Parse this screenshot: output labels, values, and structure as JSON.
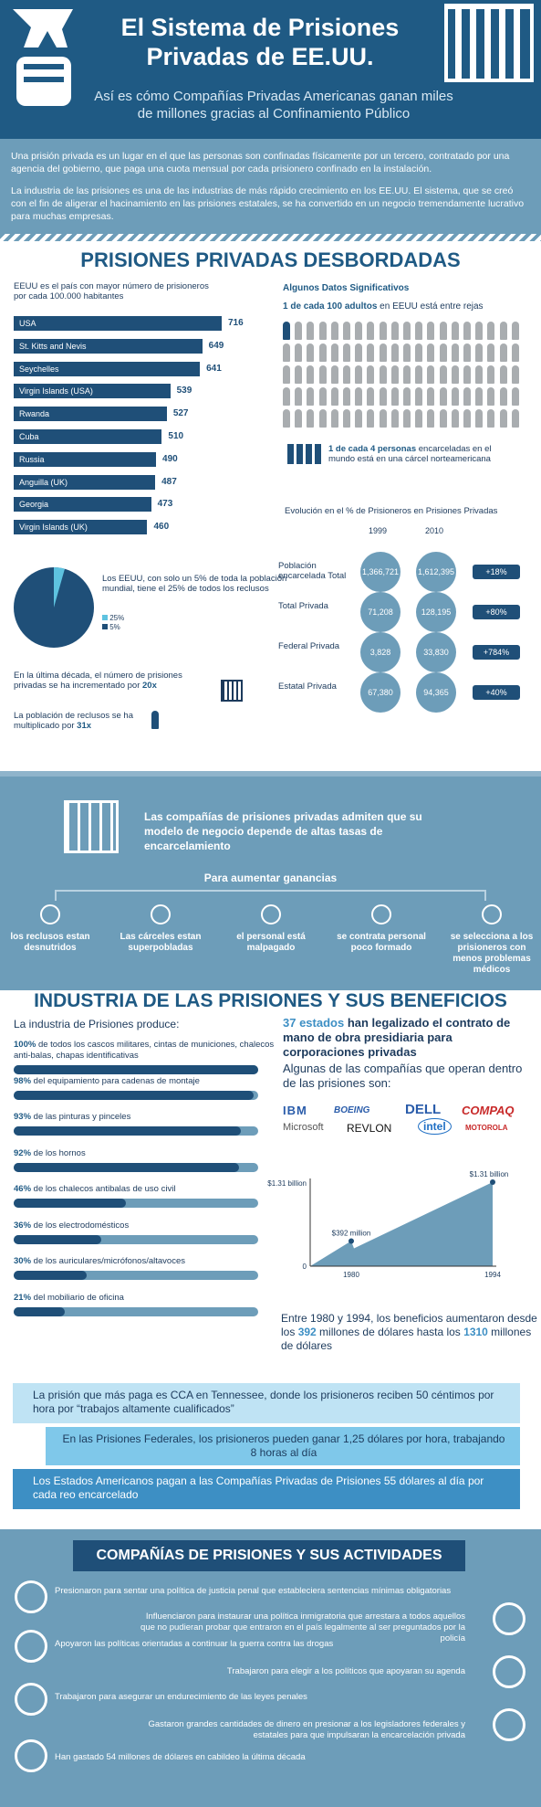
{
  "header": {
    "title": "El Sistema de Prisiones Privadas de EE.UU.",
    "subtitle": "Así es cómo Compañías Privadas Americanas ganan miles de millones gracias al Confinamiento Público"
  },
  "intro": {
    "p1": "Una prisión privada es un lugar en el que las personas son confinadas físicamente por un tercero, contratado por una agencia del gobierno, que paga una cuota mensual por cada prisionero confinado en la instalación.",
    "p2": "La industria de las prisiones es una de las industrias de más rápido crecimiento en los EE.UU. El sistema, que se creó con el fin de aligerar el hacinamiento en las prisiones estatales, se ha convertido en un negocio tremendamente lucrativo para muchas empresas."
  },
  "section1": {
    "title": "PRISIONES PRIVADAS DESBORDADAS",
    "bar_caption": "EEUU es el país con mayor número de prisioneros por cada 100.000 habitantes",
    "countries": [
      {
        "name": "USA",
        "value": "716"
      },
      {
        "name": "St. Kitts and Nevis",
        "value": "649"
      },
      {
        "name": "Seychelles",
        "value": "641"
      },
      {
        "name": "Virgin Islands (USA)",
        "value": "539"
      },
      {
        "name": "Rwanda",
        "value": "527"
      },
      {
        "name": "Cuba",
        "value": "510"
      },
      {
        "name": "Russia",
        "value": "490"
      },
      {
        "name": "Anguilla (UK)",
        "value": "487"
      },
      {
        "name": "Georgia",
        "value": "473"
      },
      {
        "name": "Virgin Islands (UK)",
        "value": "460"
      }
    ],
    "facts_title": "Algunos Datos Significativos",
    "fact1_bold": "1 de cada 100 adultos",
    "fact1_rest": " en EEUU está entre rejas",
    "fact2_bold": "1 de cada 4 personas",
    "fact2_rest": " encarceladas en el mundo está en una cárcel norteamericana",
    "pie_text": "Los EEUU, con solo un 5% de toda la población mundial, tiene el 25% de todos los reclusos",
    "pie_legend": [
      "25%",
      "5%"
    ],
    "decade_text": "En la última década, el número de prisiones privadas se ha incrementado por ",
    "decade_val": "20x",
    "pop_text": "La población de reclusos se ha multiplicado por ",
    "pop_val": "31x",
    "evo_title": "Evolución en el % de Prisioneros en Prisiones Privadas",
    "year1": "1999",
    "year2": "2010",
    "evo_rows": [
      {
        "label": "Población encarcelada Total",
        "v1": "1,366,721",
        "v2": "1,612,395",
        "pct": "+18%"
      },
      {
        "label": "Total Privada",
        "v1": "71,208",
        "v2": "128,195",
        "pct": "+80%"
      },
      {
        "label": "Federal Privada",
        "v1": "3,828",
        "v2": "33,830",
        "pct": "+784%"
      },
      {
        "label": "Estatal Privada",
        "v1": "67,380",
        "v2": "94,365",
        "pct": "+40%"
      }
    ]
  },
  "band": {
    "headline": "Las compañías de prisiones privadas admiten que su modelo de negocio depende de altas tasas de encarcelamiento",
    "subhead": "Para aumentar ganancias",
    "items": [
      {
        "text": "los reclusos estan desnutridos",
        "icon": "food-icon"
      },
      {
        "text": "Las cárceles estan superpobladas",
        "icon": "crowd-icon"
      },
      {
        "text": "el personal está malpagado",
        "icon": "money-icon"
      },
      {
        "text": "se contrata personal poco formado",
        "icon": "worker-icon"
      },
      {
        "text": "se selecciona a los prisioneros con menos problemas médicos",
        "icon": "medical-icon"
      }
    ]
  },
  "section2": {
    "title": "INDUSTRIA DE LAS PRISIONES Y SUS BENEFICIOS",
    "produces": "La industria de Prisiones produce:",
    "products": [
      {
        "pct": "100%",
        "text": " de todos los cascos militares, cintas de municiones, chalecos anti-balas, chapas identificativas",
        "value": 1.0
      },
      {
        "pct": "98%",
        "text": " del equipamiento para cadenas de montaje",
        "value": 0.98
      },
      {
        "pct": "93%",
        "text": " de las pinturas y pinceles",
        "value": 0.93
      },
      {
        "pct": "92%",
        "text": " de los hornos",
        "value": 0.92
      },
      {
        "pct": "46%",
        "text": " de los chalecos antibalas de uso civil",
        "value": 0.46
      },
      {
        "pct": "36%",
        "text": " de los electrodomésticos",
        "value": 0.36
      },
      {
        "pct": "30%",
        "text": " de los auriculares/micrófonos/altavoces",
        "value": 0.3
      },
      {
        "pct": "21%",
        "text": " del mobiliario de oficina",
        "value": 0.21
      }
    ],
    "states_bold": "37 estados",
    "states_rest": " han legalizado el contrato de mano de obra presidiaria para corporaciones privadas",
    "companies_title": "Algunas de las compañías que operan dentro de las prisiones son:",
    "companies": [
      "IBM",
      "BOEING",
      "DELL",
      "COMPAQ",
      "Microsoft",
      "REVLON",
      "intel",
      "MOTOROLA"
    ],
    "chart_data": {
      "type": "area",
      "x": [
        "1980",
        "1994"
      ],
      "values": [
        392,
        1310
      ],
      "labels": [
        "$392 million",
        "$1.31 billion"
      ],
      "ylabel_top": "$1.31 billion",
      "ylabel_zero": "0"
    },
    "profit_a": "Entre 1980 y 1994, los beneficios aumentaron desde los ",
    "profit_b": "392",
    "profit_c": " millones de dólares hasta los ",
    "profit_d": "1310",
    "profit_e": " millones de dólares",
    "quotes": [
      "La prisión que más paga es CCA en Tennessee, donde los prisioneros reciben 50 céntimos por hora por “trabajos altamente cualificados”",
      "En las Prisiones Federales, los prisioneros pueden ganar 1,25 dólares por hora, trabajando 8 horas al día",
      "Los Estados Americanos pagan a las Compañías Privadas de Prisiones 55 dólares al día por cada reo encarcelado"
    ]
  },
  "section3": {
    "title": "COMPAÑÍAS DE PRISIONES Y SUS ACTIVIDADES",
    "activities": [
      "Presionaron para sentar una política de justicia penal que estableciera sentencias mínimas obligatorias",
      "Influenciaron para instaurar una política inmigratoria que arrestara a todos aquellos que no pudieran probar que entraron en el país legalmente al ser preguntados por la policía",
      "Apoyaron las políticas orientadas a continuar la guerra contra las drogas",
      "Trabajaron para elegir a los políticos que apoyaran su agenda",
      "Trabajaron para asegurar un endurecimiento de las leyes penales",
      "Gastaron grandes cantidades de dinero en presionar a los legisladores federales y estatales para que impulsaran la encarcelación privada",
      "Han gastado 54 millones de dólares en cabildeo la última década"
    ]
  }
}
